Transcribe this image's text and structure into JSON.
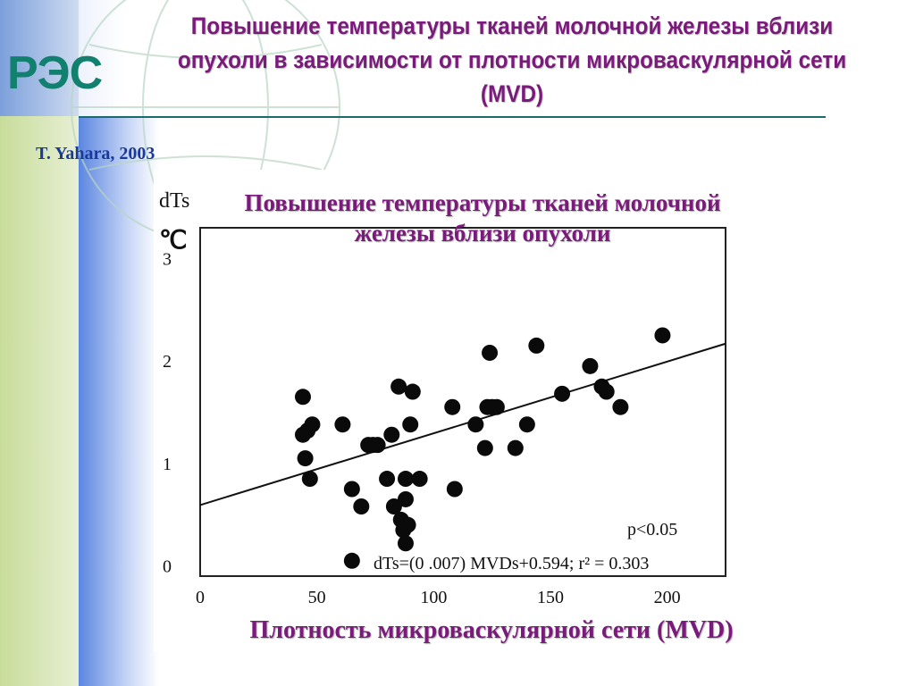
{
  "slide": {
    "title": "Повышение температуры тканей молочной железы вблизи опухоли в зависимости от плотности микроваскулярной сети (MVD)",
    "logo": "РЭС",
    "author": "T. Yahara, 2003"
  },
  "colors": {
    "title": "#7a1a7a",
    "logo": "#12806f",
    "author": "#1a3a9a",
    "accent_blue": "#4a78d8",
    "accent_green": "#c8dc9a"
  },
  "chart_data": {
    "type": "scatter",
    "title": "Повышение температуры тканей молочной железы вблизи опухоли",
    "xlabel": "Плотность микроваскулярной сети (MVD)",
    "ylabel": "dTs",
    "yunit": "℃",
    "xlim": [
      0,
      225
    ],
    "ylim": [
      -0.1,
      3.3
    ],
    "xticks": [
      0,
      50,
      100,
      150,
      200
    ],
    "yticks": [
      0,
      1,
      2,
      3
    ],
    "annotations": {
      "p": "p<0.05",
      "equation": "dTs=(0 .007) MVDs+0.594; r² = 0.303"
    },
    "regression": {
      "slope": 0.007,
      "intercept": 0.594
    },
    "points": [
      [
        44,
        1.65
      ],
      [
        44,
        1.28
      ],
      [
        45,
        1.05
      ],
      [
        46,
        1.32
      ],
      [
        47,
        0.85
      ],
      [
        48,
        1.38
      ],
      [
        61,
        1.38
      ],
      [
        65,
        0.05
      ],
      [
        65,
        0.75
      ],
      [
        69,
        0.58
      ],
      [
        72,
        1.18
      ],
      [
        74,
        1.18
      ],
      [
        76,
        1.18
      ],
      [
        80,
        0.85
      ],
      [
        82,
        1.28
      ],
      [
        83,
        0.58
      ],
      [
        85,
        1.75
      ],
      [
        86,
        0.45
      ],
      [
        87,
        0.35
      ],
      [
        88,
        0.65
      ],
      [
        88,
        0.22
      ],
      [
        88,
        0.85
      ],
      [
        89,
        0.4
      ],
      [
        90,
        1.38
      ],
      [
        91,
        1.7
      ],
      [
        94,
        0.85
      ],
      [
        108,
        1.55
      ],
      [
        109,
        0.75
      ],
      [
        118,
        1.38
      ],
      [
        122,
        1.15
      ],
      [
        123,
        1.55
      ],
      [
        124,
        2.08
      ],
      [
        125,
        1.55
      ],
      [
        127,
        1.55
      ],
      [
        135,
        1.15
      ],
      [
        140,
        1.38
      ],
      [
        144,
        2.15
      ],
      [
        155,
        1.68
      ],
      [
        167,
        1.95
      ],
      [
        172,
        1.75
      ],
      [
        174,
        1.7
      ],
      [
        180,
        1.55
      ],
      [
        198,
        2.25
      ]
    ]
  }
}
